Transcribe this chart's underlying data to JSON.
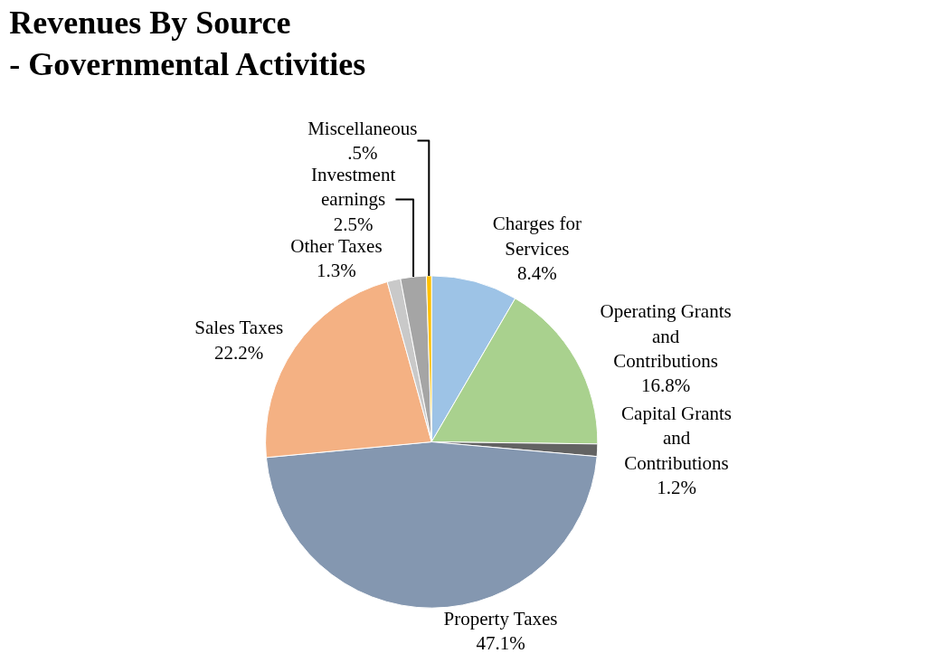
{
  "chart_data": {
    "type": "pie",
    "title": "Revenues By Source\n- Governmental Activities",
    "categories": [
      "Charges for Services",
      "Operating Grants and Contributions",
      "Capital Grants and Contributions",
      "Property Taxes",
      "Sales Taxes",
      "Other Taxes",
      "Investment earnings",
      "Miscellaneous"
    ],
    "values": [
      8.4,
      16.8,
      1.2,
      47.1,
      22.2,
      1.3,
      2.5,
      0.5
    ],
    "value_labels": [
      "8.4%",
      "16.8%",
      "1.2%",
      "47.1%",
      "22.2%",
      "1.3%",
      "2.5%",
      ".5%"
    ],
    "colors": [
      "#9dc3e6",
      "#a9d18e",
      "#636363",
      "#8497b0",
      "#f4b183",
      "#c9c9c9",
      "#a5a5a5",
      "#ffc000"
    ],
    "legend": false
  }
}
